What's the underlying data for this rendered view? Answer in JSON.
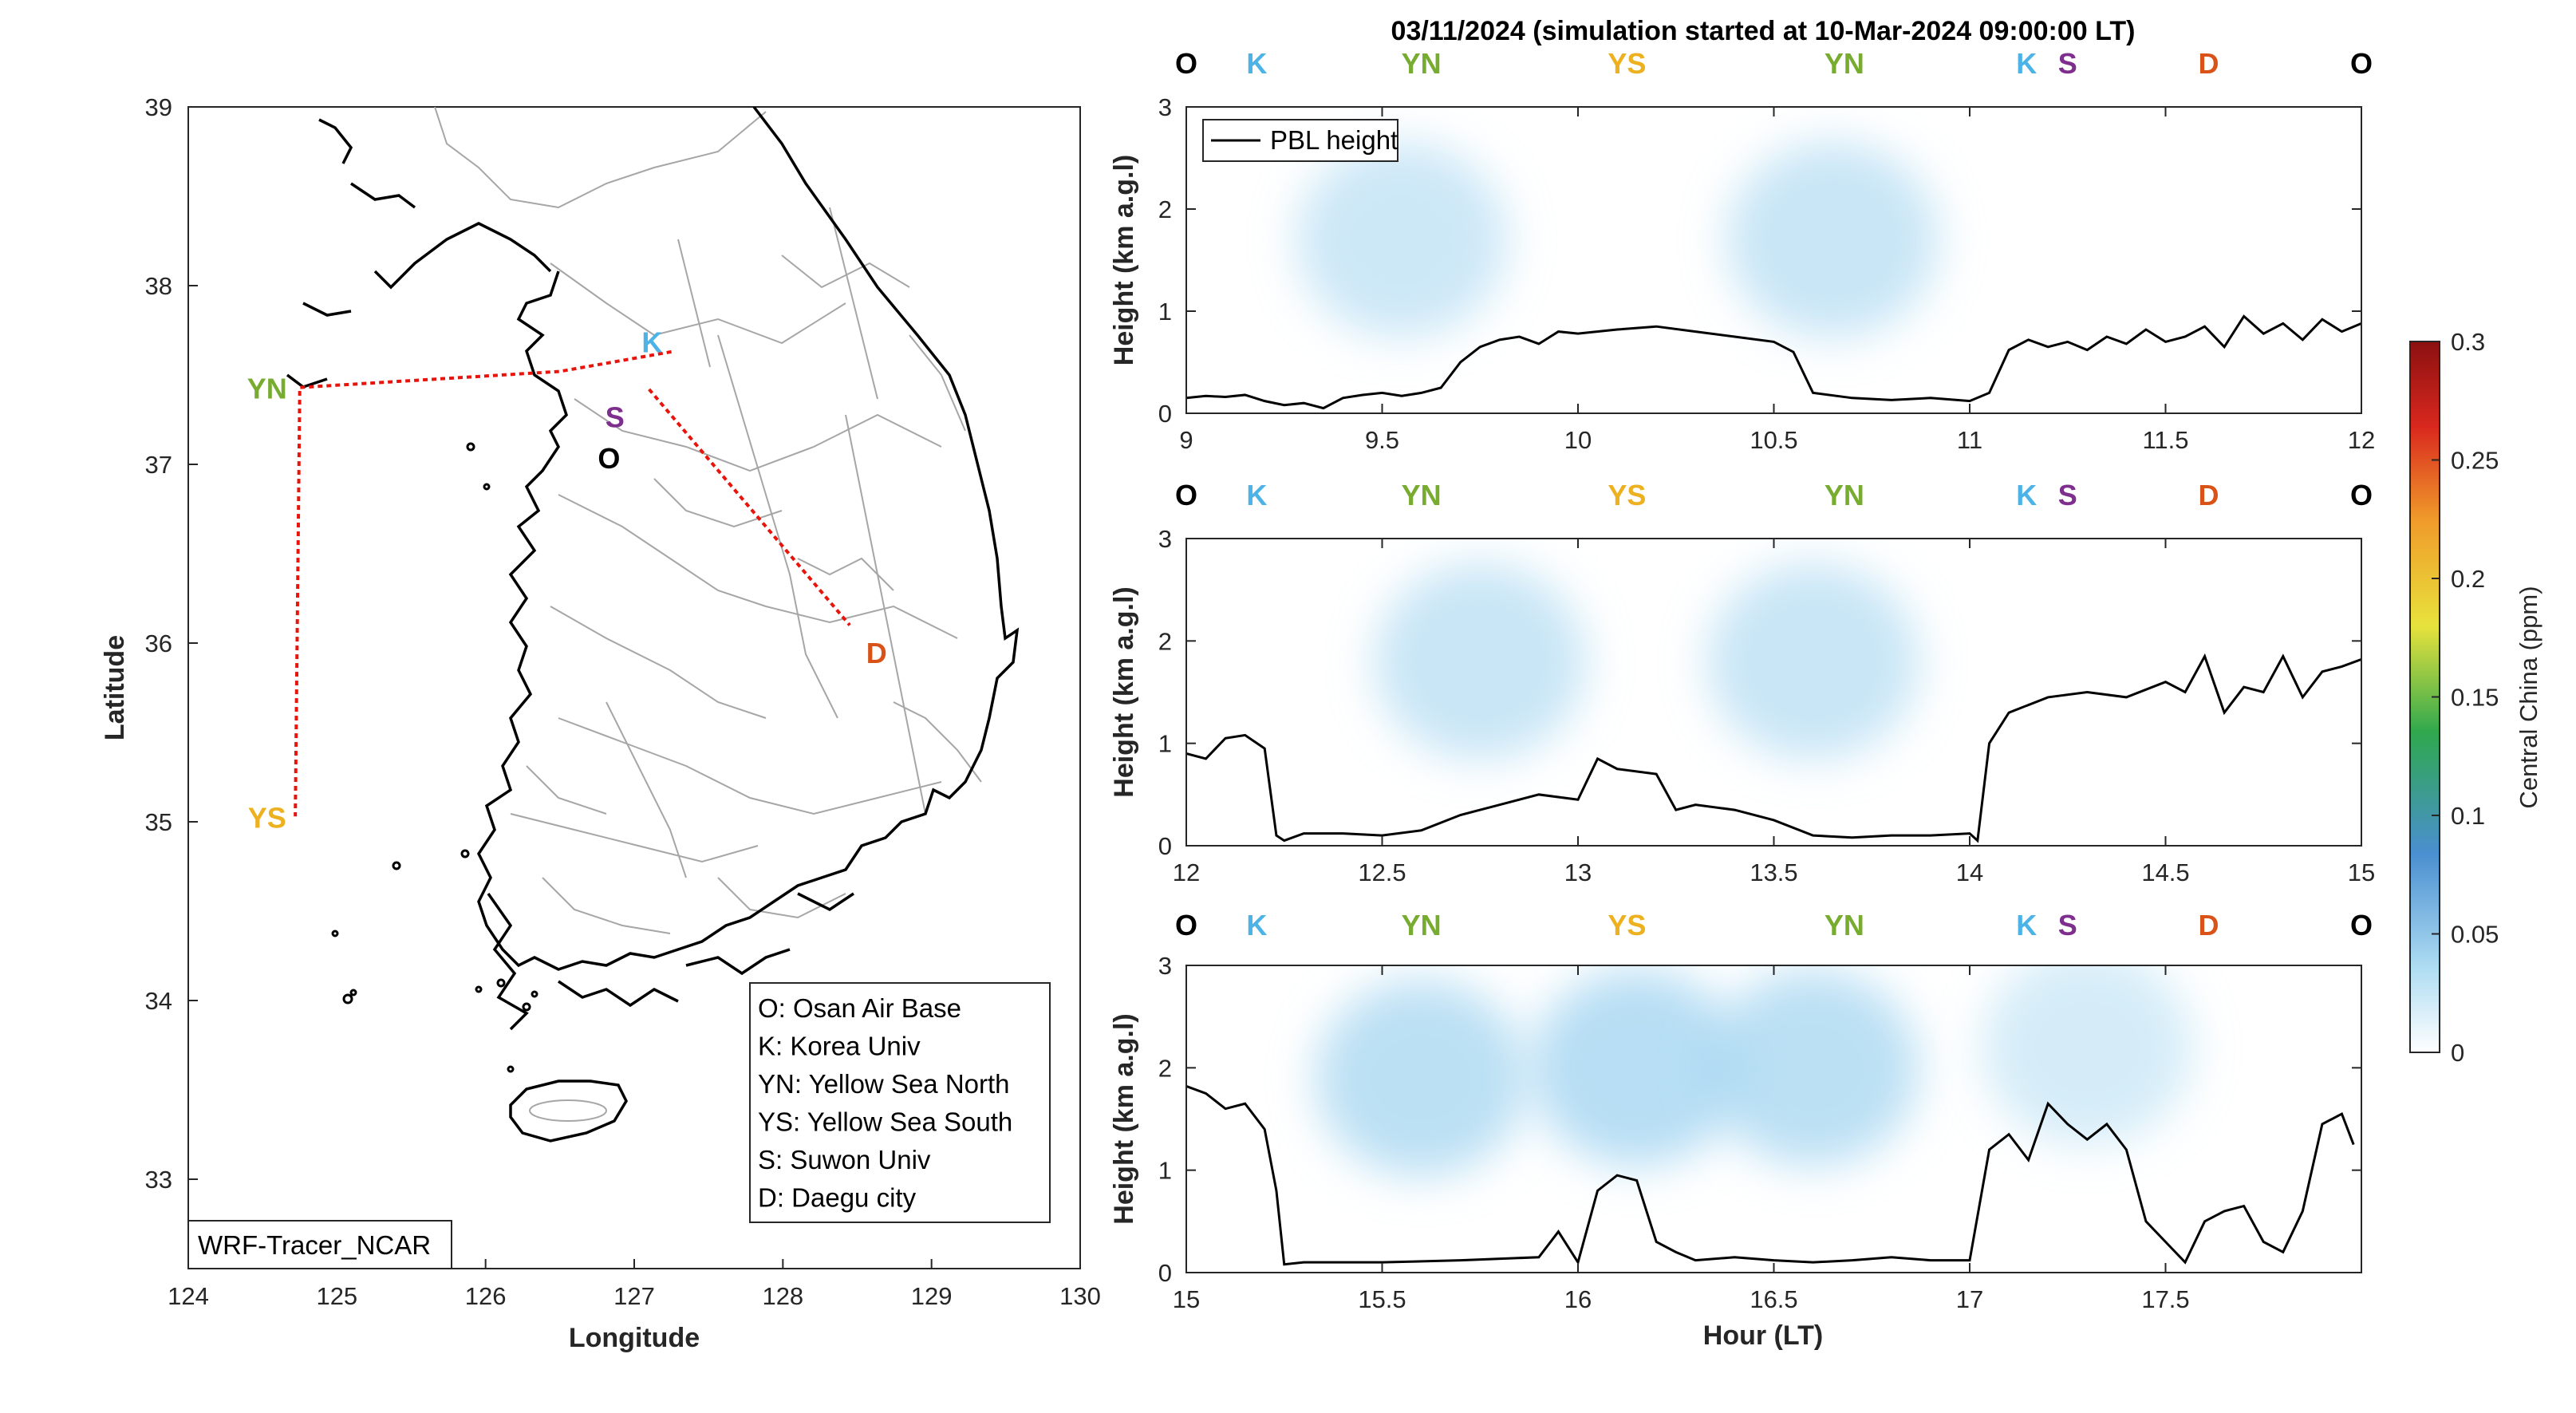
{
  "title": "03/11/2024 (simulation started at 10-Mar-2024 09:00:00 LT)",
  "map": {
    "xlabel": "Longitude",
    "ylabel": "Latitude",
    "xlim": [
      124,
      130
    ],
    "ylim": [
      32.5,
      39
    ],
    "xticks": [
      "124",
      "125",
      "126",
      "127",
      "128",
      "129",
      "130"
    ],
    "yticks": [
      "33",
      "34",
      "35",
      "36",
      "37",
      "38",
      "39"
    ],
    "tag": "WRF-Tracer_NCAR",
    "route_color": "#e8140b",
    "route": [
      [
        127.25,
        37.63
      ],
      [
        126.5,
        37.52
      ],
      [
        124.75,
        37.43
      ],
      [
        124.72,
        35.03
      ]
    ],
    "route2": [
      [
        127.1,
        37.42
      ],
      [
        128.45,
        36.1
      ]
    ],
    "sites": [
      {
        "code": "K",
        "lon": 127.12,
        "lat": 37.69,
        "color": "#4db3e6"
      },
      {
        "code": "S",
        "lon": 126.87,
        "lat": 37.27,
        "color": "#7e2f8e"
      },
      {
        "code": "O",
        "lon": 126.83,
        "lat": 37.04,
        "color": "#000000"
      },
      {
        "code": "YN",
        "lon": 124.53,
        "lat": 37.43,
        "color": "#77ac30"
      },
      {
        "code": "YS",
        "lon": 124.53,
        "lat": 35.03,
        "color": "#edb120"
      },
      {
        "code": "D",
        "lon": 128.63,
        "lat": 35.95,
        "color": "#d95319"
      }
    ],
    "legend": [
      "O: Osan Air Base",
      "K: Korea Univ",
      "YN: Yellow Sea North",
      "YS: Yellow Sea South",
      "S: Suwon Univ",
      "D: Daegu city"
    ]
  },
  "colorbar": {
    "label": "Central China (ppm)",
    "ticks": [
      "0",
      "0.05",
      "0.1",
      "0.15",
      "0.2",
      "0.25",
      "0.3"
    ],
    "range": [
      0,
      0.3
    ]
  },
  "chart_data": [
    {
      "type": "area",
      "name": "panel-1",
      "ylabel": "Height (km a.g.l)",
      "xlim": [
        9,
        12
      ],
      "ylim": [
        0,
        3
      ],
      "xticks": [
        "9",
        "9.5",
        "10",
        "10.5",
        "11",
        "11.5",
        "12"
      ],
      "yticks": [
        "0",
        "1",
        "2",
        "3"
      ],
      "legend": "PBL height",
      "route_labels": [
        "O",
        "K",
        "YN",
        "YS",
        "YN",
        "K",
        "S",
        "D",
        "O"
      ],
      "pbl_x": [
        9.0,
        9.05,
        9.1,
        9.15,
        9.2,
        9.25,
        9.3,
        9.35,
        9.4,
        9.45,
        9.5,
        9.55,
        9.6,
        9.65,
        9.7,
        9.75,
        9.8,
        9.85,
        9.9,
        9.95,
        10.0,
        10.1,
        10.2,
        10.3,
        10.4,
        10.5,
        10.55,
        10.6,
        10.7,
        10.8,
        10.9,
        11.0,
        11.05,
        11.1,
        11.15,
        11.2,
        11.25,
        11.3,
        11.35,
        11.4,
        11.45,
        11.5,
        11.55,
        11.6,
        11.65,
        11.7,
        11.75,
        11.8,
        11.85,
        11.9,
        11.95,
        12.0
      ],
      "pbl_y": [
        0.15,
        0.17,
        0.16,
        0.18,
        0.12,
        0.08,
        0.1,
        0.05,
        0.15,
        0.18,
        0.2,
        0.17,
        0.2,
        0.25,
        0.5,
        0.65,
        0.72,
        0.75,
        0.68,
        0.8,
        0.78,
        0.82,
        0.85,
        0.8,
        0.75,
        0.7,
        0.6,
        0.2,
        0.15,
        0.13,
        0.15,
        0.12,
        0.2,
        0.62,
        0.72,
        0.65,
        0.7,
        0.62,
        0.75,
        0.68,
        0.82,
        0.7,
        0.75,
        0.85,
        0.65,
        0.95,
        0.78,
        0.88,
        0.72,
        0.92,
        0.8,
        0.88
      ],
      "concentration": [
        {
          "hour": 9.55,
          "height": 1.7,
          "ppm": 0.02
        },
        {
          "hour": 10.65,
          "height": 1.7,
          "ppm": 0.025
        }
      ]
    },
    {
      "type": "area",
      "name": "panel-2",
      "ylabel": "Height (km a.g.l)",
      "xlim": [
        12,
        15
      ],
      "ylim": [
        0,
        3
      ],
      "xticks": [
        "12",
        "12.5",
        "13",
        "13.5",
        "14",
        "14.5",
        "15"
      ],
      "yticks": [
        "0",
        "1",
        "2",
        "3"
      ],
      "route_labels": [
        "O",
        "K",
        "YN",
        "YS",
        "YN",
        "K",
        "S",
        "D",
        "O"
      ],
      "pbl_x": [
        12.0,
        12.05,
        12.1,
        12.15,
        12.2,
        12.23,
        12.25,
        12.3,
        12.4,
        12.5,
        12.6,
        12.7,
        12.8,
        12.9,
        13.0,
        13.05,
        13.1,
        13.2,
        13.25,
        13.3,
        13.4,
        13.5,
        13.6,
        13.7,
        13.8,
        13.9,
        14.0,
        14.02,
        14.05,
        14.1,
        14.2,
        14.3,
        14.4,
        14.5,
        14.55,
        14.6,
        14.65,
        14.7,
        14.75,
        14.8,
        14.85,
        14.9,
        14.95,
        15.0
      ],
      "pbl_y": [
        0.9,
        0.85,
        1.05,
        1.08,
        0.95,
        0.1,
        0.05,
        0.12,
        0.12,
        0.1,
        0.15,
        0.3,
        0.4,
        0.5,
        0.45,
        0.85,
        0.75,
        0.7,
        0.35,
        0.4,
        0.35,
        0.25,
        0.1,
        0.08,
        0.1,
        0.1,
        0.12,
        0.05,
        1.0,
        1.3,
        1.45,
        1.5,
        1.45,
        1.6,
        1.5,
        1.85,
        1.3,
        1.55,
        1.5,
        1.85,
        1.45,
        1.7,
        1.75,
        1.82
      ],
      "concentration": [
        {
          "hour": 12.75,
          "height": 1.8,
          "ppm": 0.025
        },
        {
          "hour": 13.6,
          "height": 1.8,
          "ppm": 0.025
        }
      ]
    },
    {
      "type": "area",
      "name": "panel-3",
      "ylabel": "Height (km a.g.l)",
      "xlabel": "Hour (LT)",
      "xlim": [
        15,
        18
      ],
      "ylim": [
        0,
        3
      ],
      "xticks": [
        "15",
        "15.5",
        "16",
        "16.5",
        "17",
        "17.5"
      ],
      "yticks": [
        "0",
        "1",
        "2",
        "3"
      ],
      "route_labels": [
        "O",
        "K",
        "YN",
        "YS",
        "YN",
        "K",
        "S",
        "D",
        "O"
      ],
      "pbl_x": [
        15.0,
        15.05,
        15.1,
        15.15,
        15.2,
        15.23,
        15.25,
        15.3,
        15.5,
        15.7,
        15.9,
        15.95,
        16.0,
        16.05,
        16.1,
        16.15,
        16.2,
        16.25,
        16.3,
        16.4,
        16.5,
        16.6,
        16.7,
        16.8,
        16.9,
        17.0,
        17.05,
        17.1,
        17.15,
        17.2,
        17.25,
        17.3,
        17.35,
        17.4,
        17.45,
        17.5,
        17.55,
        17.6,
        17.65,
        17.7,
        17.75,
        17.8,
        17.85,
        17.9,
        17.95,
        17.98
      ],
      "pbl_y": [
        1.82,
        1.75,
        1.6,
        1.65,
        1.4,
        0.8,
        0.08,
        0.1,
        0.1,
        0.12,
        0.15,
        0.4,
        0.1,
        0.8,
        0.95,
        0.9,
        0.3,
        0.2,
        0.12,
        0.15,
        0.12,
        0.1,
        0.12,
        0.15,
        0.12,
        0.12,
        1.2,
        1.35,
        1.1,
        1.65,
        1.45,
        1.3,
        1.45,
        1.2,
        0.5,
        0.3,
        0.1,
        0.5,
        0.6,
        0.65,
        0.3,
        0.2,
        0.6,
        1.45,
        1.55,
        1.25
      ],
      "concentration": [
        {
          "hour": 15.6,
          "height": 1.9,
          "ppm": 0.04
        },
        {
          "hour": 16.15,
          "height": 2.0,
          "ppm": 0.045
        },
        {
          "hour": 16.6,
          "height": 2.0,
          "ppm": 0.04
        },
        {
          "hour": 17.3,
          "height": 2.2,
          "ppm": 0.01
        }
      ]
    }
  ]
}
